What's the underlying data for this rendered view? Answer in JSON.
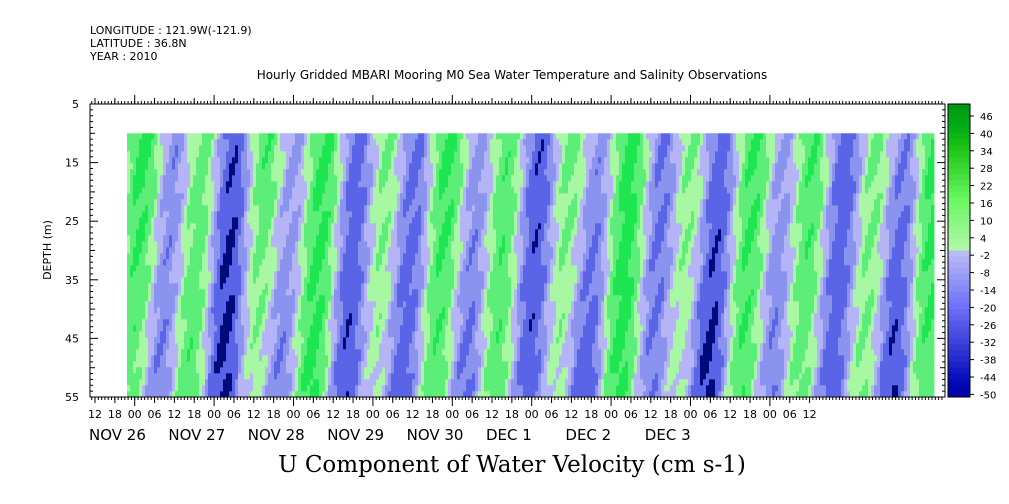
{
  "header": {
    "longitude": "LONGITUDE : 121.9W(-121.9)",
    "latitude": "LATITUDE : 36.8N",
    "year": "YEAR : 2010"
  },
  "title": "Hourly Gridded MBARI Mooring M0 Sea Water Temperature and Salinity Observations",
  "caption": "U Component of Water Velocity (cm s-1)",
  "chart_data": {
    "type": "heatmap",
    "ylabel": "DEPTH (m)",
    "yticks": [
      "5",
      "15",
      "25",
      "35",
      "45",
      "55"
    ],
    "ylim": [
      5,
      55
    ],
    "y_inverted": true,
    "data_depth_range": [
      10,
      55
    ],
    "hour_labels": [
      "12",
      "18",
      "00",
      "06",
      "12",
      "18",
      "00",
      "06",
      "12",
      "18",
      "00",
      "06",
      "12",
      "18",
      "00",
      "06",
      "12",
      "18",
      "00",
      "06",
      "12",
      "18",
      "00",
      "06",
      "12",
      "18",
      "00",
      "06",
      "12",
      "18",
      "00",
      "06",
      "12",
      "18",
      "00",
      "06",
      "12"
    ],
    "day_labels": [
      "NOV 26",
      "NOV 27",
      "NOV 28",
      "NOV 29",
      "NOV 30",
      "DEC  1",
      "DEC  2",
      "DEC  3"
    ],
    "colorbar": {
      "labels": [
        "46",
        "40",
        "34",
        "28",
        "22",
        "16",
        "10",
        "4",
        "-2",
        "-8",
        "-14",
        "-20",
        "-26",
        "-32",
        "-38",
        "-44",
        "-50"
      ],
      "range": [
        -50,
        50
      ]
    },
    "colors": {
      "pos_strong": "#008c28",
      "pos_mid": "#1ee650",
      "pos_light": "#a8f7a2",
      "neg_light": "#b4b4f7",
      "neg_mid": "#5a64e6",
      "neg_strong": "#000a7a"
    }
  }
}
